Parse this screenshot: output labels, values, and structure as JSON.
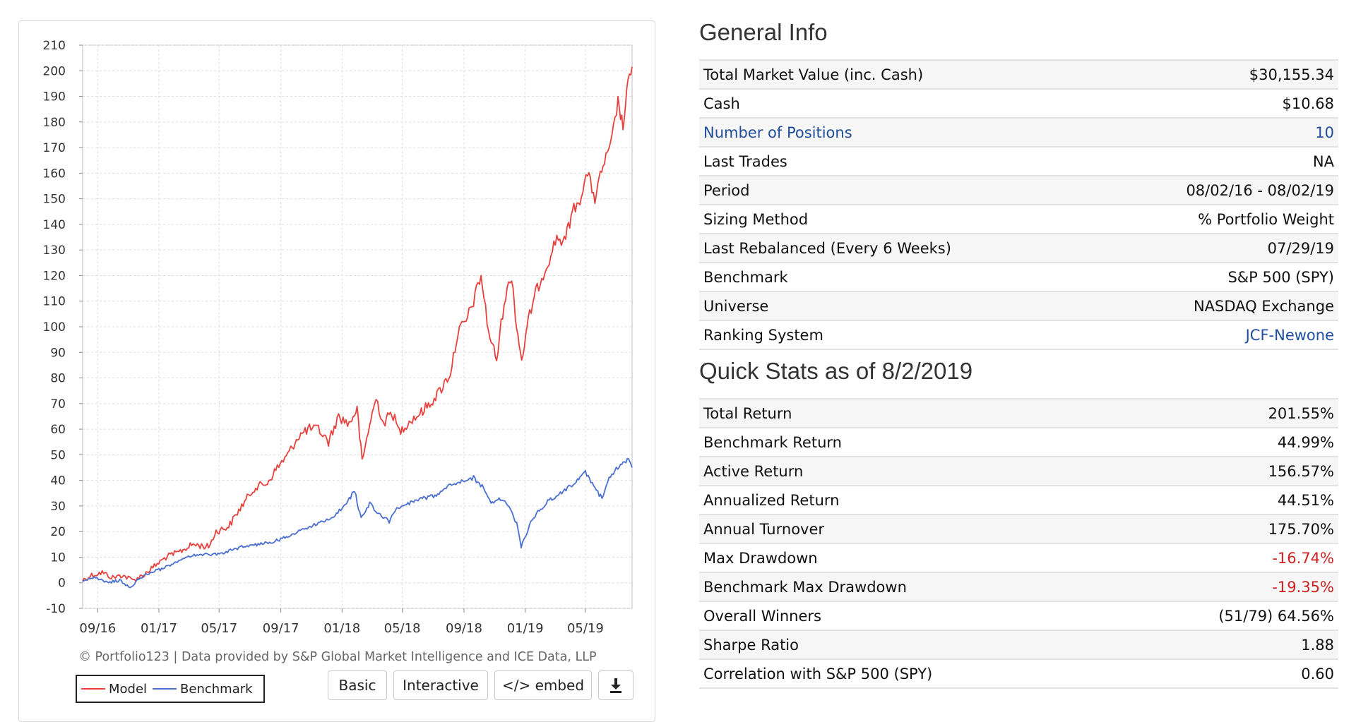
{
  "chart": {
    "credit": "© Portfolio123 | Data provided by S&P Global Market Intelligence and ICE Data, LLP",
    "buttons": {
      "basic": "Basic",
      "interactive": "Interactive",
      "embed": "</> embed",
      "download_icon": "download-icon"
    }
  },
  "chart_data": {
    "type": "line",
    "title": "",
    "xlabel": "",
    "ylabel": "",
    "ylim": [
      -10,
      210
    ],
    "yticks": [
      -10,
      0,
      10,
      20,
      30,
      40,
      50,
      60,
      70,
      80,
      90,
      100,
      110,
      120,
      130,
      140,
      150,
      160,
      170,
      180,
      190,
      200,
      210
    ],
    "x_tick_labels": [
      "09/16",
      "01/17",
      "05/17",
      "09/17",
      "01/18",
      "05/18",
      "09/18",
      "01/19",
      "05/19"
    ],
    "x_tick_dates": [
      "2016-09-01",
      "2017-01-01",
      "2017-05-01",
      "2017-09-01",
      "2018-01-01",
      "2018-05-01",
      "2018-09-01",
      "2019-01-01",
      "2019-05-01"
    ],
    "x_range": [
      "2016-08-02",
      "2019-08-02"
    ],
    "grid": true,
    "legend": "bottom-left",
    "series": [
      {
        "name": "Model",
        "color": "#e8413d",
        "points": [
          [
            "2016-08-02",
            1
          ],
          [
            "2016-08-20",
            3
          ],
          [
            "2016-09-10",
            4
          ],
          [
            "2016-10-01",
            2
          ],
          [
            "2016-10-20",
            3
          ],
          [
            "2016-11-10",
            1
          ],
          [
            "2016-12-01",
            3
          ],
          [
            "2016-12-20",
            6
          ],
          [
            "2017-01-15",
            10
          ],
          [
            "2017-02-10",
            12
          ],
          [
            "2017-03-10",
            15
          ],
          [
            "2017-04-10",
            14
          ],
          [
            "2017-04-25",
            20
          ],
          [
            "2017-05-20",
            22
          ],
          [
            "2017-06-15",
            30
          ],
          [
            "2017-07-10",
            37
          ],
          [
            "2017-08-05",
            39
          ],
          [
            "2017-08-25",
            45
          ],
          [
            "2017-09-15",
            50
          ],
          [
            "2017-10-05",
            57
          ],
          [
            "2017-10-25",
            60
          ],
          [
            "2017-11-15",
            60
          ],
          [
            "2017-12-05",
            55
          ],
          [
            "2017-12-25",
            65
          ],
          [
            "2018-01-15",
            62
          ],
          [
            "2018-01-31",
            68
          ],
          [
            "2018-02-10",
            47
          ],
          [
            "2018-02-25",
            62
          ],
          [
            "2018-03-10",
            72
          ],
          [
            "2018-03-25",
            62
          ],
          [
            "2018-04-10",
            67
          ],
          [
            "2018-04-25",
            59
          ],
          [
            "2018-05-15",
            63
          ],
          [
            "2018-06-05",
            66
          ],
          [
            "2018-06-25",
            70
          ],
          [
            "2018-07-15",
            75
          ],
          [
            "2018-08-05",
            82
          ],
          [
            "2018-08-20",
            98
          ],
          [
            "2018-09-05",
            102
          ],
          [
            "2018-09-20",
            110
          ],
          [
            "2018-10-05",
            120
          ],
          [
            "2018-10-20",
            98
          ],
          [
            "2018-11-05",
            87
          ],
          [
            "2018-11-20",
            110
          ],
          [
            "2018-12-05",
            120
          ],
          [
            "2018-12-15",
            100
          ],
          [
            "2018-12-25",
            87
          ],
          [
            "2019-01-10",
            105
          ],
          [
            "2019-01-25",
            115
          ],
          [
            "2019-02-15",
            125
          ],
          [
            "2019-03-05",
            135
          ],
          [
            "2019-03-20",
            133
          ],
          [
            "2019-04-05",
            145
          ],
          [
            "2019-04-20",
            150
          ],
          [
            "2019-05-05",
            160
          ],
          [
            "2019-05-20",
            150
          ],
          [
            "2019-06-05",
            163
          ],
          [
            "2019-06-20",
            170
          ],
          [
            "2019-07-05",
            188
          ],
          [
            "2019-07-15",
            178
          ],
          [
            "2019-07-25",
            195
          ],
          [
            "2019-08-02",
            201.55
          ]
        ]
      },
      {
        "name": "Benchmark",
        "color": "#4a6fd0",
        "points": [
          [
            "2016-08-02",
            1
          ],
          [
            "2016-08-25",
            2
          ],
          [
            "2016-09-20",
            0
          ],
          [
            "2016-10-15",
            1
          ],
          [
            "2016-11-05",
            -2
          ],
          [
            "2016-11-25",
            2
          ],
          [
            "2016-12-15",
            4
          ],
          [
            "2017-01-15",
            6
          ],
          [
            "2017-02-15",
            9
          ],
          [
            "2017-03-15",
            11
          ],
          [
            "2017-04-15",
            11
          ],
          [
            "2017-05-15",
            12
          ],
          [
            "2017-06-15",
            14
          ],
          [
            "2017-07-15",
            15
          ],
          [
            "2017-08-15",
            16
          ],
          [
            "2017-09-15",
            18
          ],
          [
            "2017-10-15",
            21
          ],
          [
            "2017-11-15",
            23
          ],
          [
            "2017-12-15",
            26
          ],
          [
            "2018-01-10",
            31
          ],
          [
            "2018-01-26",
            36
          ],
          [
            "2018-02-08",
            25
          ],
          [
            "2018-02-25",
            31
          ],
          [
            "2018-03-15",
            27
          ],
          [
            "2018-04-05",
            24
          ],
          [
            "2018-04-20",
            29
          ],
          [
            "2018-05-15",
            31
          ],
          [
            "2018-06-10",
            33
          ],
          [
            "2018-07-05",
            34
          ],
          [
            "2018-07-30",
            38
          ],
          [
            "2018-08-30",
            40
          ],
          [
            "2018-09-20",
            41
          ],
          [
            "2018-10-10",
            37
          ],
          [
            "2018-10-25",
            31
          ],
          [
            "2018-11-10",
            33
          ],
          [
            "2018-11-30",
            30
          ],
          [
            "2018-12-15",
            23
          ],
          [
            "2018-12-24",
            14
          ],
          [
            "2019-01-15",
            25
          ],
          [
            "2019-02-15",
            32
          ],
          [
            "2019-03-15",
            35
          ],
          [
            "2019-04-15",
            40
          ],
          [
            "2019-05-01",
            43
          ],
          [
            "2019-05-20",
            37
          ],
          [
            "2019-06-03",
            33
          ],
          [
            "2019-06-20",
            42
          ],
          [
            "2019-07-10",
            46
          ],
          [
            "2019-07-26",
            48
          ],
          [
            "2019-08-02",
            45
          ]
        ]
      }
    ]
  },
  "general_info": {
    "title": "General Info",
    "rows": [
      {
        "label": "Total Market Value (inc. Cash)",
        "value": "$30,155.34"
      },
      {
        "label": "Cash",
        "value": "$10.68"
      },
      {
        "label": "Number of Positions",
        "value": "10"
      },
      {
        "label": "Last Trades",
        "value": "NA"
      },
      {
        "label": "Period",
        "value": "08/02/16 - 08/02/19"
      },
      {
        "label": "Sizing Method",
        "value": "% Portfolio Weight"
      },
      {
        "label": "Last Rebalanced (Every 6 Weeks)",
        "value": "07/29/19"
      },
      {
        "label": "Benchmark",
        "value": "S&P 500 (SPY)"
      },
      {
        "label": "Universe",
        "value": "NASDAQ Exchange"
      },
      {
        "label": "Ranking System",
        "value": "JCF-Newone"
      }
    ]
  },
  "quick_stats": {
    "title": "Quick Stats as of 8/2/2019",
    "rows": [
      {
        "label": "Total Return",
        "value": "201.55%"
      },
      {
        "label": "Benchmark Return",
        "value": "44.99%"
      },
      {
        "label": "Active Return",
        "value": "156.57%"
      },
      {
        "label": "Annualized Return",
        "value": "44.51%"
      },
      {
        "label": "Annual Turnover",
        "value": "175.70%"
      },
      {
        "label": "Max Drawdown",
        "value": "-16.74%"
      },
      {
        "label": "Benchmark Max Drawdown",
        "value": "-19.35%"
      },
      {
        "label": "Overall Winners",
        "value": "(51/79) 64.56%"
      },
      {
        "label": "Sharpe Ratio",
        "value": "1.88"
      },
      {
        "label": "Correlation with S&P 500 (SPY)",
        "value": "0.60"
      }
    ]
  },
  "colors": {
    "link": "#1f4e9c",
    "negative": "#cc2222",
    "model_line": "#e8413d",
    "benchmark_line": "#4a6fd0"
  }
}
